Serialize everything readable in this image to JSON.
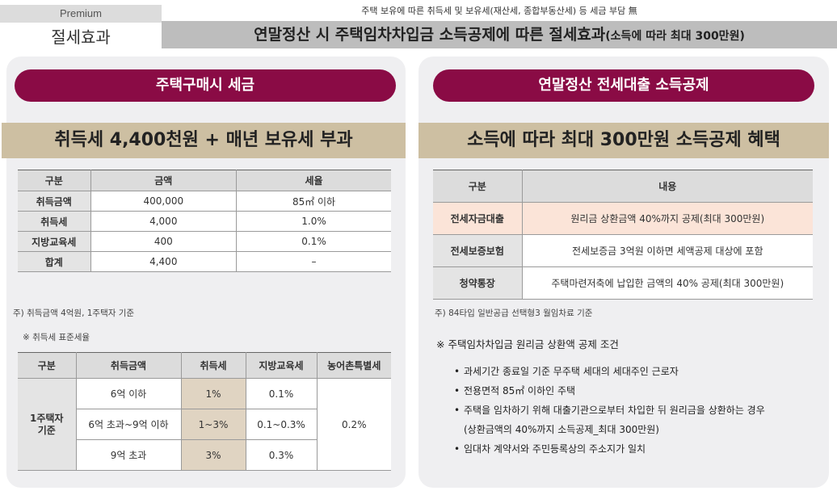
{
  "header": {
    "premium": "Premium",
    "notice": "주택 보유에 따른 취득세 및 보유세(재산세, 종합부동산세) 등 세금 부담 無",
    "section": "절세효과",
    "title_main": "연말정산 시 주택임차차입금 소득공제에 따른 절세효과",
    "title_sub": "(소득에 따라 최대 300만원)"
  },
  "left": {
    "pill": "주택구매시 세금",
    "band": "취득세 4,400천원 + 매년 보유세 부과",
    "table1": {
      "headers": [
        "구분",
        "금액",
        "세율"
      ],
      "rows": [
        [
          "취득금액",
          "400,000",
          "85㎡ 이하"
        ],
        [
          "취득세",
          "4,000",
          "1.0%"
        ],
        [
          "지방교육세",
          "400",
          "0.1%"
        ],
        [
          "합계",
          "4,400",
          "–"
        ]
      ]
    },
    "note1": "주) 취득금액 4억원, 1주택자 기준",
    "note2": "※ 취득세 표준세율",
    "table2": {
      "headers": [
        "구분",
        "취득금액",
        "취득세",
        "지방교육세",
        "농어촌특별세"
      ],
      "group": "1주택자\n기준",
      "rows": [
        [
          "6억 이하",
          "1%",
          "0.1%"
        ],
        [
          "6억 초과~9억 이하",
          "1~3%",
          "0.1~0.3%"
        ],
        [
          "9억 초과",
          "3%",
          "0.3%"
        ]
      ],
      "rural": "0.2%"
    }
  },
  "right": {
    "pill": "연말정산 전세대출 소득공제",
    "band": "소득에 따라 최대 300만원 소득공제 혜택",
    "table": {
      "headers": [
        "구분",
        "내용"
      ],
      "rows": [
        [
          "전세자금대출",
          "원리금 상환금액 40%까지 공제(최대 300만원)"
        ],
        [
          "전세보증보험",
          "전세보증금 3억원 이하면 세액공제 대상에 포함"
        ],
        [
          "청약통장",
          "주택마련저축에 납입한 금액의 40% 공제(최대 300만원)"
        ]
      ]
    },
    "note": "주) 84타입 일반공급 선택형3 월임차료 기준",
    "cond_title": "※ 주택임차차입금 원리금 상환액 공제 조건",
    "conditions": [
      "과세기간 종료일 기준 무주택 세대의 세대주인 근로자",
      "전용면적 85㎡ 이하인 주택",
      "주택을 임차하기 위해 대출기관으로부터 차입한 뒤 원리금을 상환하는 경우",
      "(상환금액의 40%까지 소득공제_최대 300만원)",
      "임대차 계약서와 주민등록상의 주소지가 일치"
    ]
  },
  "colors": {
    "pill": "#8a0b45",
    "band": "#cdbfa2",
    "panel": "#efeff1",
    "title_bar": "#bdbdbd",
    "highlight_peach": "#fbe4d8",
    "highlight_beige": "#e0d4c2"
  }
}
